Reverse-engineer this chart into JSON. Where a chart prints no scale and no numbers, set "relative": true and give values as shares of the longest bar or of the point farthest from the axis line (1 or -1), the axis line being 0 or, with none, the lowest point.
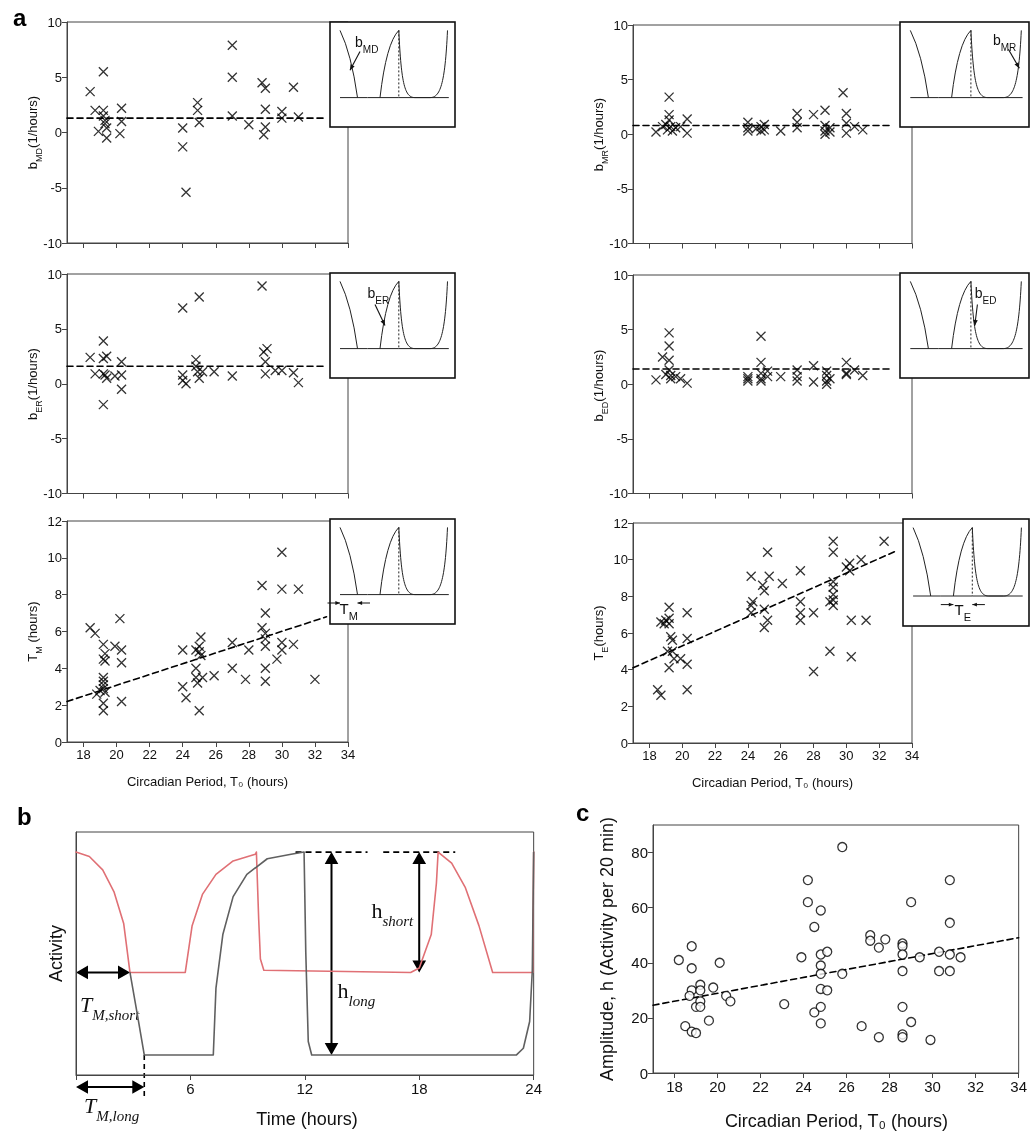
{
  "chart_data": [
    {
      "type": "scatter",
      "title": "a",
      "ylabel": "b$_{MD}$(1/hours)",
      "xlim": [
        17,
        34
      ],
      "xticks": [
        18,
        20,
        22,
        24,
        26,
        28,
        30,
        32,
        34
      ],
      "ylim": [
        -10,
        10
      ],
      "yticks": [
        -10,
        -5,
        0,
        5,
        10
      ],
      "tick_labels": "y",
      "annotations": [
        "b$_{MD}$"
      ],
      "series": [
        {
          "marker": "cross",
          "color": "#000000",
          "x": [
            18.4,
            18.7,
            18.9,
            19.2,
            19.2,
            19.2,
            19.3,
            19.3,
            19.4,
            19.4,
            20.3,
            20.3,
            20.2,
            24.0,
            24.0,
            24.2,
            24.9,
            24.9,
            25.0,
            27.0,
            27.0,
            27.0,
            28.0,
            28.8,
            29.0,
            29.0,
            29.0,
            28.9,
            30.0,
            30.0,
            30.7,
            31.0
          ],
          "values": [
            3.7,
            2.0,
            0.1,
            5.5,
            2.0,
            1.5,
            1.1,
            0.8,
            0.4,
            -0.5,
            2.2,
            1.0,
            -0.1,
            0.4,
            -1.3,
            -5.4,
            2.7,
            2.0,
            0.9,
            7.9,
            5.0,
            1.5,
            0.7,
            4.5,
            4.0,
            2.1,
            0.5,
            -0.2,
            1.9,
            1.3,
            4.1,
            1.4
          ]
        },
        {
          "type": "line",
          "line_style": "dashed",
          "color": "#000000",
          "x": [
            17,
            32.7
          ],
          "values": [
            1.3,
            1.3
          ]
        }
      ]
    },
    {
      "type": "scatter",
      "ylabel": "b$_{MR}$(1/hours)",
      "xlim": [
        17,
        34
      ],
      "xticks": [
        18,
        20,
        22,
        24,
        26,
        28,
        30,
        32,
        34
      ],
      "ylim": [
        -10,
        10
      ],
      "yticks": [
        -10,
        -5,
        0,
        5,
        10
      ],
      "tick_labels": "y",
      "annotations": [
        "b$_{MR}$"
      ],
      "series": [
        {
          "marker": "cross",
          "color": "#000000",
          "x": [
            18.4,
            18.8,
            19.0,
            19.2,
            19.2,
            19.2,
            19.3,
            19.1,
            19.4,
            19.6,
            19.9,
            20.3,
            20.3,
            24.0,
            24.0,
            24.0,
            24.5,
            24.8,
            24.8,
            25.0,
            25.0,
            26.0,
            27.0,
            27.0,
            27.0,
            28.0,
            28.7,
            28.7,
            28.7,
            28.7,
            29.0,
            29.0,
            29.8,
            30.0,
            30.0,
            30.0,
            30.5,
            31.0
          ],
          "values": [
            0.2,
            0.7,
            0.9,
            3.4,
            1.8,
            1.3,
            0.7,
            0.4,
            0.3,
            0.6,
            0.7,
            1.4,
            0.1,
            1.1,
            0.6,
            0.3,
            0.5,
            0.3,
            0.7,
            0.4,
            0.9,
            0.3,
            1.9,
            1.1,
            0.6,
            1.8,
            2.2,
            0.8,
            0.3,
            0.0,
            0.6,
            0.2,
            3.8,
            1.9,
            1.0,
            0.1,
            0.7,
            0.4
          ]
        },
        {
          "type": "line",
          "line_style": "dashed",
          "color": "#000000",
          "x": [
            17,
            32.8
          ],
          "values": [
            0.8,
            0.8
          ]
        }
      ]
    },
    {
      "type": "scatter",
      "ylabel": "b$_{ER}$(1/hours)",
      "xlim": [
        17,
        34
      ],
      "xticks": [
        18,
        20,
        22,
        24,
        26,
        28,
        30,
        32,
        34
      ],
      "ylim": [
        -10,
        10
      ],
      "yticks": [
        -10,
        -5,
        0,
        5,
        10
      ],
      "tick_labels": "y",
      "annotations": [
        "b$_{ER}$"
      ],
      "series": [
        {
          "marker": "cross",
          "color": "#000000",
          "x": [
            18.4,
            18.7,
            19.2,
            19.2,
            19.4,
            19.2,
            19.3,
            19.4,
            19.2,
            19.9,
            20.3,
            20.3,
            20.3,
            24.0,
            24.0,
            24.0,
            24.2,
            25.0,
            24.8,
            24.8,
            24.9,
            25.0,
            25.2,
            25.9,
            27.0,
            28.8,
            28.9,
            29.1,
            29.0,
            29.0,
            29.6,
            30.0,
            30.7,
            31.0
          ],
          "values": [
            2.4,
            0.9,
            3.9,
            2.3,
            2.5,
            0.9,
            0.8,
            0.5,
            -1.9,
            0.7,
            0.8,
            2.0,
            -0.5,
            6.9,
            0.8,
            0.3,
            0.0,
            7.9,
            2.2,
            1.6,
            1.1,
            0.5,
            1.1,
            1.1,
            0.7,
            8.9,
            2.9,
            3.2,
            2.0,
            0.9,
            1.2,
            1.2,
            1.0,
            0.1
          ]
        },
        {
          "type": "line",
          "line_style": "dashed",
          "color": "#000000",
          "x": [
            17,
            32.7
          ],
          "values": [
            1.6,
            1.6
          ]
        }
      ]
    },
    {
      "type": "scatter",
      "ylabel": "b$_{ED}$(1/hours)",
      "xlim": [
        17,
        34
      ],
      "xticks": [
        18,
        20,
        22,
        24,
        26,
        28,
        30,
        32,
        34
      ],
      "ylim": [
        -10,
        10
      ],
      "yticks": [
        -10,
        -5,
        0,
        5,
        10
      ],
      "tick_labels": "y",
      "annotations": [
        "b$_{ED}$"
      ],
      "series": [
        {
          "marker": "cross",
          "color": "#000000",
          "x": [
            18.4,
            18.8,
            19.0,
            19.2,
            19.2,
            19.2,
            19.2,
            19.3,
            19.3,
            19.6,
            19.9,
            20.3,
            24.0,
            24.0,
            24.0,
            24.8,
            24.8,
            24.8,
            24.8,
            24.8,
            25.2,
            25.2,
            26.0,
            27.0,
            27.0,
            27.0,
            28.0,
            28.0,
            28.8,
            28.8,
            28.8,
            28.8,
            29.0,
            30.0,
            30.0,
            30.0,
            30.5,
            31.0
          ],
          "values": [
            0.4,
            2.5,
            0.9,
            4.7,
            3.5,
            2.2,
            1.3,
            0.8,
            0.5,
            0.7,
            0.5,
            0.1,
            0.3,
            0.5,
            0.7,
            4.4,
            2.0,
            1.0,
            0.5,
            0.3,
            1.2,
            0.7,
            0.7,
            1.3,
            0.7,
            0.3,
            1.7,
            0.2,
            1.2,
            0.8,
            0.3,
            0.0,
            0.5,
            2.0,
            1.0,
            0.9,
            1.3,
            0.8
          ]
        },
        {
          "type": "line",
          "line_style": "dashed",
          "color": "#000000",
          "x": [
            17,
            32.8
          ],
          "values": [
            1.4,
            1.4
          ]
        }
      ]
    },
    {
      "type": "scatter",
      "xlabel": "Circadian Period, T₀ (hours)",
      "ylabel": "T$_{M}$ (hours)",
      "xlim": [
        17,
        34
      ],
      "xticks": [
        18,
        20,
        22,
        24,
        26,
        28,
        30,
        32,
        34
      ],
      "ylim": [
        0,
        12
      ],
      "yticks": [
        0,
        2,
        4,
        6,
        8,
        10,
        12
      ],
      "annotations": [
        "T$_{M}$"
      ],
      "series": [
        {
          "marker": "cross",
          "color": "#000000",
          "x": [
            18.4,
            18.7,
            18.8,
            19.0,
            19.2,
            19.2,
            19.3,
            19.3,
            19.2,
            19.2,
            19.2,
            19.2,
            19.3,
            19.2,
            19.2,
            19.9,
            20.2,
            20.3,
            20.3,
            20.3,
            24.0,
            24.0,
            24.2,
            24.8,
            24.8,
            24.8,
            24.9,
            25.0,
            25.0,
            25.1,
            25.1,
            25.0,
            25.2,
            25.9,
            27.0,
            27.0,
            27.8,
            28.0,
            28.8,
            28.8,
            29.0,
            29.0,
            29.0,
            29.0,
            29.0,
            29.0,
            29.7,
            30.0,
            30.0,
            30.0,
            30.0,
            30.7,
            31.0,
            32.0
          ],
          "values": [
            6.2,
            5.9,
            2.6,
            2.8,
            5.3,
            4.5,
            4.8,
            4.4,
            3.5,
            3.3,
            3.1,
            2.9,
            2.7,
            2.1,
            1.7,
            5.2,
            6.7,
            5.0,
            4.3,
            2.2,
            5.0,
            3.0,
            2.4,
            5.0,
            4.0,
            3.5,
            3.2,
            5.2,
            4.9,
            5.7,
            4.7,
            1.7,
            3.5,
            3.6,
            5.4,
            4.0,
            3.4,
            5.0,
            6.2,
            8.5,
            5.9,
            7.0,
            5.6,
            5.2,
            4.0,
            3.3,
            4.5,
            10.3,
            8.3,
            5.4,
            5.0,
            5.3,
            8.3,
            3.4
          ]
        },
        {
          "type": "line",
          "line_style": "dashed",
          "color": "#000000",
          "x": [
            17,
            32.7
          ],
          "values": [
            2.2,
            6.8
          ]
        }
      ]
    },
    {
      "type": "scatter",
      "xlabel": "Circadian Period, T₀ (hours)",
      "ylabel": "T$_{E}$(hours)",
      "xlim": [
        17,
        34
      ],
      "xticks": [
        18,
        20,
        22,
        24,
        26,
        28,
        30,
        32,
        34
      ],
      "ylim": [
        0,
        12
      ],
      "yticks": [
        0,
        2,
        4,
        6,
        8,
        10,
        12
      ],
      "annotations": [
        "T$_{E}$"
      ],
      "series": [
        {
          "marker": "cross",
          "color": "#000000",
          "x": [
            18.5,
            18.7,
            18.7,
            18.9,
            19.0,
            19.2,
            19.2,
            19.2,
            19.3,
            19.4,
            19.1,
            19.4,
            19.5,
            19.2,
            19.9,
            20.3,
            20.3,
            20.3,
            20.3,
            24.2,
            24.3,
            24.2,
            24.2,
            24.9,
            25.0,
            25.0,
            25.0,
            25.2,
            25.2,
            25.3,
            26.1,
            27.2,
            27.2,
            27.2,
            27.2,
            28.0,
            28.0,
            29.0,
            29.2,
            29.2,
            29.2,
            29.2,
            29.2,
            29.2,
            29.0,
            29.2,
            30.0,
            30.2,
            30.2,
            30.3,
            30.3,
            30.9,
            31.2,
            32.3
          ],
          "values": [
            2.9,
            2.6,
            6.6,
            6.5,
            6.7,
            7.4,
            6.8,
            6.5,
            5.8,
            5.6,
            5.0,
            5.0,
            4.6,
            4.1,
            4.6,
            7.1,
            5.7,
            4.3,
            2.9,
            9.1,
            7.7,
            7.5,
            7.1,
            8.6,
            8.3,
            7.3,
            6.3,
            10.4,
            6.7,
            9.1,
            8.7,
            9.4,
            7.7,
            7.1,
            6.7,
            7.1,
            3.9,
            5.0,
            11.0,
            10.4,
            8.8,
            8.5,
            8.1,
            7.8,
            7.7,
            7.5,
            9.6,
            9.8,
            9.4,
            6.7,
            4.7,
            10.0,
            6.7,
            11.0
          ]
        },
        {
          "type": "line",
          "line_style": "dashed",
          "color": "#000000",
          "x": [
            17,
            33.1
          ],
          "values": [
            4.1,
            10.5
          ]
        }
      ]
    },
    {
      "type": "line",
      "title": "b",
      "xlabel": "Time (hours)",
      "ylabel": "Activity",
      "relative": true,
      "xlim": [
        0,
        24
      ],
      "xticks": [
        {
          "value": 0,
          "label": null
        },
        6,
        12,
        18,
        24
      ],
      "annotations": [
        {
          "text": "T$_{M,short}$",
          "x": 2.83,
          "y": 0.46
        },
        {
          "text": "T$_{M,long}$",
          "x": 3.58,
          "y": 0.09
        },
        {
          "text": "h$_{short}$",
          "x": 18,
          "y": 0.46
        },
        {
          "text": "h$_{long}$",
          "x": 13.4,
          "y": 0.09
        }
      ],
      "series": [
        {
          "color": "#e07075",
          "x": [
            0,
            0.7,
            1.4,
            2.0,
            2.5,
            2.83,
            5.73,
            6.09,
            6.63,
            7.34,
            8.24,
            9.4,
            9.46,
            9.58,
            9.67,
            9.85,
            17.55,
            18.0,
            18.63,
            18.9,
            18.99,
            19.7,
            20.42,
            21.13,
            21.85,
            23.95,
            24
          ],
          "values": [
            1,
            0.98,
            0.92,
            0.82,
            0.68,
            0.46,
            0.46,
            0.67,
            0.81,
            0.9,
            0.96,
            0.99,
            1,
            0.7,
            0.52,
            0.47,
            0.46,
            0.48,
            0.63,
            0.86,
            1,
            0.95,
            0.84,
            0.67,
            0.46,
            0.46,
            1
          ]
        },
        {
          "color": "#606060",
          "x": [
            2.83,
            3.22,
            3.58,
            7.2,
            7.34,
            7.7,
            8.24,
            8.96,
            10.03,
            11.28,
            11.96,
            12.05,
            12.18,
            12.36,
            23.1,
            23.46,
            23.79,
            23.93,
            24
          ],
          "values": [
            0.46,
            0.27,
            0.09,
            0.09,
            0.39,
            0.63,
            0.8,
            0.9,
            0.97,
            0.99,
            1,
            0.55,
            0.15,
            0.09,
            0.09,
            0.12,
            0.24,
            0.47,
            1
          ]
        }
      ]
    },
    {
      "type": "scatter",
      "title": "c",
      "xlabel": "Circadian Period, T₀ (hours)",
      "ylabel": "Amplitude, h (Activity per 20 min)",
      "xlim": [
        17,
        34
      ],
      "xticks": [
        18,
        20,
        22,
        24,
        26,
        28,
        30,
        32,
        34
      ],
      "ylim": [
        0,
        90
      ],
      "yticks": [
        0,
        20,
        40,
        60,
        80
      ],
      "series": [
        {
          "marker": "circle",
          "color": "#000000",
          "x": [
            18.2,
            18.5,
            18.8,
            18.8,
            18.8,
            18.7,
            18.8,
            19.0,
            19.0,
            19.2,
            19.2,
            19.2,
            19.2,
            19.6,
            19.8,
            20.1,
            20.4,
            20.6,
            23.1,
            23.9,
            24.2,
            24.2,
            24.5,
            24.5,
            24.8,
            24.8,
            24.8,
            24.8,
            24.8,
            24.8,
            24.8,
            25.1,
            25.1,
            25.8,
            25.8,
            26.7,
            27.1,
            27.1,
            27.5,
            27.5,
            27.8,
            28.6,
            28.6,
            28.6,
            28.6,
            28.6,
            28.6,
            28.6,
            29.0,
            29.0,
            29.4,
            29.9,
            30.3,
            30.3,
            30.8,
            30.8,
            30.8,
            30.8,
            31.3
          ],
          "values": [
            41,
            17,
            46,
            38,
            30,
            28,
            15,
            14.5,
            24,
            32,
            30,
            26,
            24,
            19,
            31,
            40,
            28,
            26,
            25,
            42,
            70,
            62,
            53,
            22,
            59,
            43,
            39,
            36,
            30.5,
            24,
            18,
            44,
            30,
            82,
            36,
            17,
            50,
            48,
            45.5,
            13,
            48.5,
            47,
            46,
            43,
            37,
            24,
            14,
            13,
            62,
            18.5,
            42,
            12,
            44,
            37,
            70,
            54.5,
            43,
            37,
            42
          ]
        },
        {
          "type": "line",
          "line_style": "dashed",
          "color": "#000000",
          "x": [
            17,
            34
          ],
          "values": [
            24.6,
            49.1
          ]
        }
      ]
    }
  ]
}
